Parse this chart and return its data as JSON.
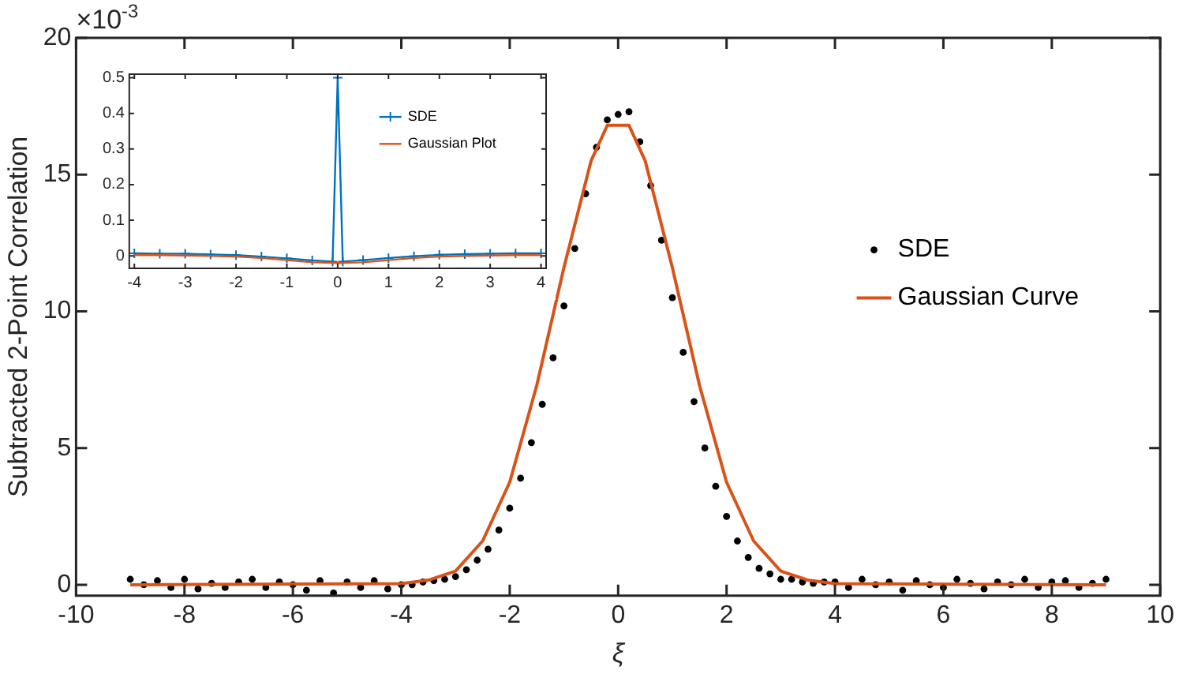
{
  "chart_data": [
    {
      "type": "scatter",
      "xlabel": "ξ",
      "ylabel": "Subtracted 2-Point Correlation",
      "annotations": [
        "×10$^{-3}$"
      ],
      "xlim": [
        -10,
        10
      ],
      "xticks": [
        -10,
        -8,
        -6,
        -4,
        -2,
        0,
        2,
        4,
        6,
        8,
        10
      ],
      "ylim": [
        -0.4,
        20
      ],
      "yticks": [
        0,
        5,
        10,
        15,
        20
      ],
      "grid": false,
      "legend": "right",
      "series": [
        {
          "name": "SDE",
          "marker": "circle",
          "color": "#000000",
          "x": [
            -9,
            -8.75,
            -8.5,
            -8.25,
            -8,
            -7.75,
            -7.5,
            -7.25,
            -7,
            -6.75,
            -6.5,
            -6.25,
            -6,
            -5.75,
            -5.5,
            -5.25,
            -5,
            -4.75,
            -4.5,
            -4.25,
            -4,
            -3.8,
            -3.6,
            -3.4,
            -3.2,
            -3.0,
            -2.8,
            -2.6,
            -2.4,
            -2.2,
            -2.0,
            -1.8,
            -1.6,
            -1.4,
            -1.2,
            -1.0,
            -0.8,
            -0.6,
            -0.4,
            -0.2,
            0,
            0.2,
            0.4,
            0.6,
            0.8,
            1.0,
            1.2,
            1.4,
            1.6,
            1.8,
            2.0,
            2.2,
            2.4,
            2.6,
            2.8,
            3.0,
            3.2,
            3.4,
            3.6,
            3.8,
            4,
            4.25,
            4.5,
            4.75,
            5,
            5.25,
            5.5,
            5.75,
            6,
            6.25,
            6.5,
            6.75,
            7,
            7.25,
            7.5,
            7.75,
            8,
            8.25,
            8.5,
            8.75,
            9
          ],
          "values": [
            0.2,
            0,
            0.15,
            -0.1,
            0.2,
            -0.15,
            0.05,
            -0.1,
            0.1,
            0.2,
            -0.1,
            0.1,
            0,
            -0.2,
            0.15,
            -0.3,
            0.1,
            -0.1,
            0.15,
            -0.15,
            0,
            0,
            0.1,
            0.15,
            0.2,
            0.3,
            0.55,
            0.9,
            1.3,
            2.0,
            2.8,
            3.9,
            5.2,
            6.6,
            8.3,
            10.2,
            12.3,
            14.3,
            16.0,
            17.0,
            17.2,
            17.3,
            16.2,
            14.6,
            12.6,
            10.5,
            8.5,
            6.7,
            5.0,
            3.6,
            2.5,
            1.6,
            1.0,
            0.6,
            0.4,
            0.2,
            0.2,
            0.1,
            0.05,
            0.1,
            0.1,
            -0.1,
            0.2,
            0,
            0.1,
            -0.2,
            0.15,
            0,
            -0.1,
            0.2,
            0.05,
            -0.15,
            0.1,
            0,
            0.2,
            -0.1,
            0.1,
            0.15,
            -0.1,
            0.05,
            0.2
          ]
        },
        {
          "name": "Gaussian Curve",
          "type": "line",
          "marker": "none",
          "color": "#d95319",
          "x": [
            -9,
            -4,
            -3.5,
            -3,
            -2.5,
            -2,
            -1.5,
            -1,
            -0.5,
            -0.2,
            0.2,
            0.5,
            1,
            1.5,
            2,
            2.5,
            3,
            3.5,
            4,
            9
          ],
          "values": [
            0,
            0.04,
            0.17,
            0.5,
            1.6,
            3.75,
            7.3,
            11.6,
            15.5,
            16.8,
            16.8,
            15.5,
            11.6,
            7.3,
            3.75,
            1.6,
            0.5,
            0.17,
            0.04,
            0
          ]
        }
      ]
    },
    {
      "type": "line",
      "xlim": [
        -4.1,
        4.1
      ],
      "xticks": [
        -4,
        -3,
        -2,
        -1,
        0,
        1,
        2,
        3,
        4
      ],
      "ylim": [
        -0.035,
        0.51
      ],
      "yticks": [
        0,
        0.1,
        0.2,
        0.3,
        0.4,
        0.5
      ],
      "grid": false,
      "legend": "top right",
      "series": [
        {
          "name": "SDE",
          "marker": "cross",
          "color": "#0072bd",
          "x": [
            -4,
            -3.5,
            -3,
            -2.5,
            -2,
            -1.5,
            -1,
            -0.5,
            -0.1,
            0,
            0.1,
            0.5,
            1,
            1.5,
            2,
            2.5,
            3,
            3.5,
            4
          ],
          "values": [
            0.007,
            0.006,
            0.006,
            0.004,
            0.002,
            -0.002,
            -0.007,
            -0.013,
            -0.016,
            0.5,
            -0.016,
            -0.012,
            -0.006,
            -0.001,
            0.003,
            0.005,
            0.006,
            0.007,
            0.007
          ]
        },
        {
          "name": "Gaussian Plot",
          "marker": "none",
          "color": "#d95319",
          "x": [
            -4,
            -3.5,
            -3,
            -2.5,
            -2,
            -1.5,
            -1,
            -0.5,
            0,
            0.5,
            1,
            1.5,
            2,
            2.5,
            3,
            3.5,
            4
          ],
          "values": [
            0.002,
            0.002,
            0.001,
            0,
            -0.002,
            -0.006,
            -0.012,
            -0.018,
            -0.02,
            -0.018,
            -0.012,
            -0.006,
            -0.002,
            0,
            0.001,
            0.002,
            0.002
          ]
        }
      ]
    }
  ]
}
